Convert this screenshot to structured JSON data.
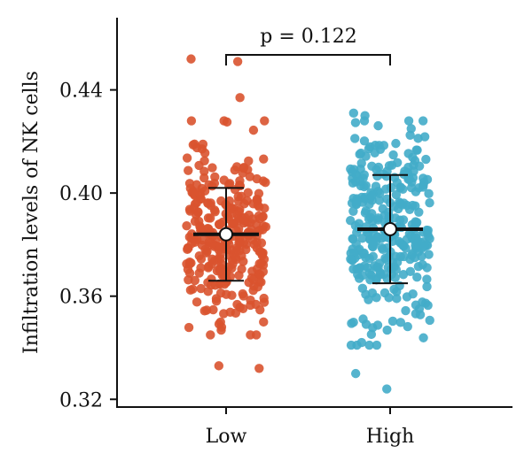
{
  "chart_data": {
    "type": "scatter",
    "ylabel": "Infiltration levels of NK cells",
    "xlabel": "",
    "ylim": [
      0.317,
      0.468
    ],
    "yticks": [
      0.32,
      0.36,
      0.4,
      0.44
    ],
    "ytick_labels": [
      "0.32",
      "0.36",
      "0.40",
      "0.44"
    ],
    "categories": [
      "Low",
      "High"
    ],
    "annotation": "p = 0.122",
    "grid": false,
    "series": [
      {
        "category": "Low",
        "color": "#d9532f",
        "mean": 0.384,
        "lower": 0.366,
        "upper": 0.402,
        "notable_points": [
          0.452,
          0.451,
          0.437,
          0.348,
          0.333,
          0.332
        ],
        "range_min": 0.345,
        "range_max": 0.428,
        "n": 320
      },
      {
        "category": "High",
        "color": "#43acc9",
        "mean": 0.386,
        "lower": 0.365,
        "upper": 0.407,
        "notable_points": [
          0.431,
          0.43,
          0.33,
          0.324
        ],
        "range_min": 0.341,
        "range_max": 0.428,
        "n": 320
      }
    ]
  }
}
